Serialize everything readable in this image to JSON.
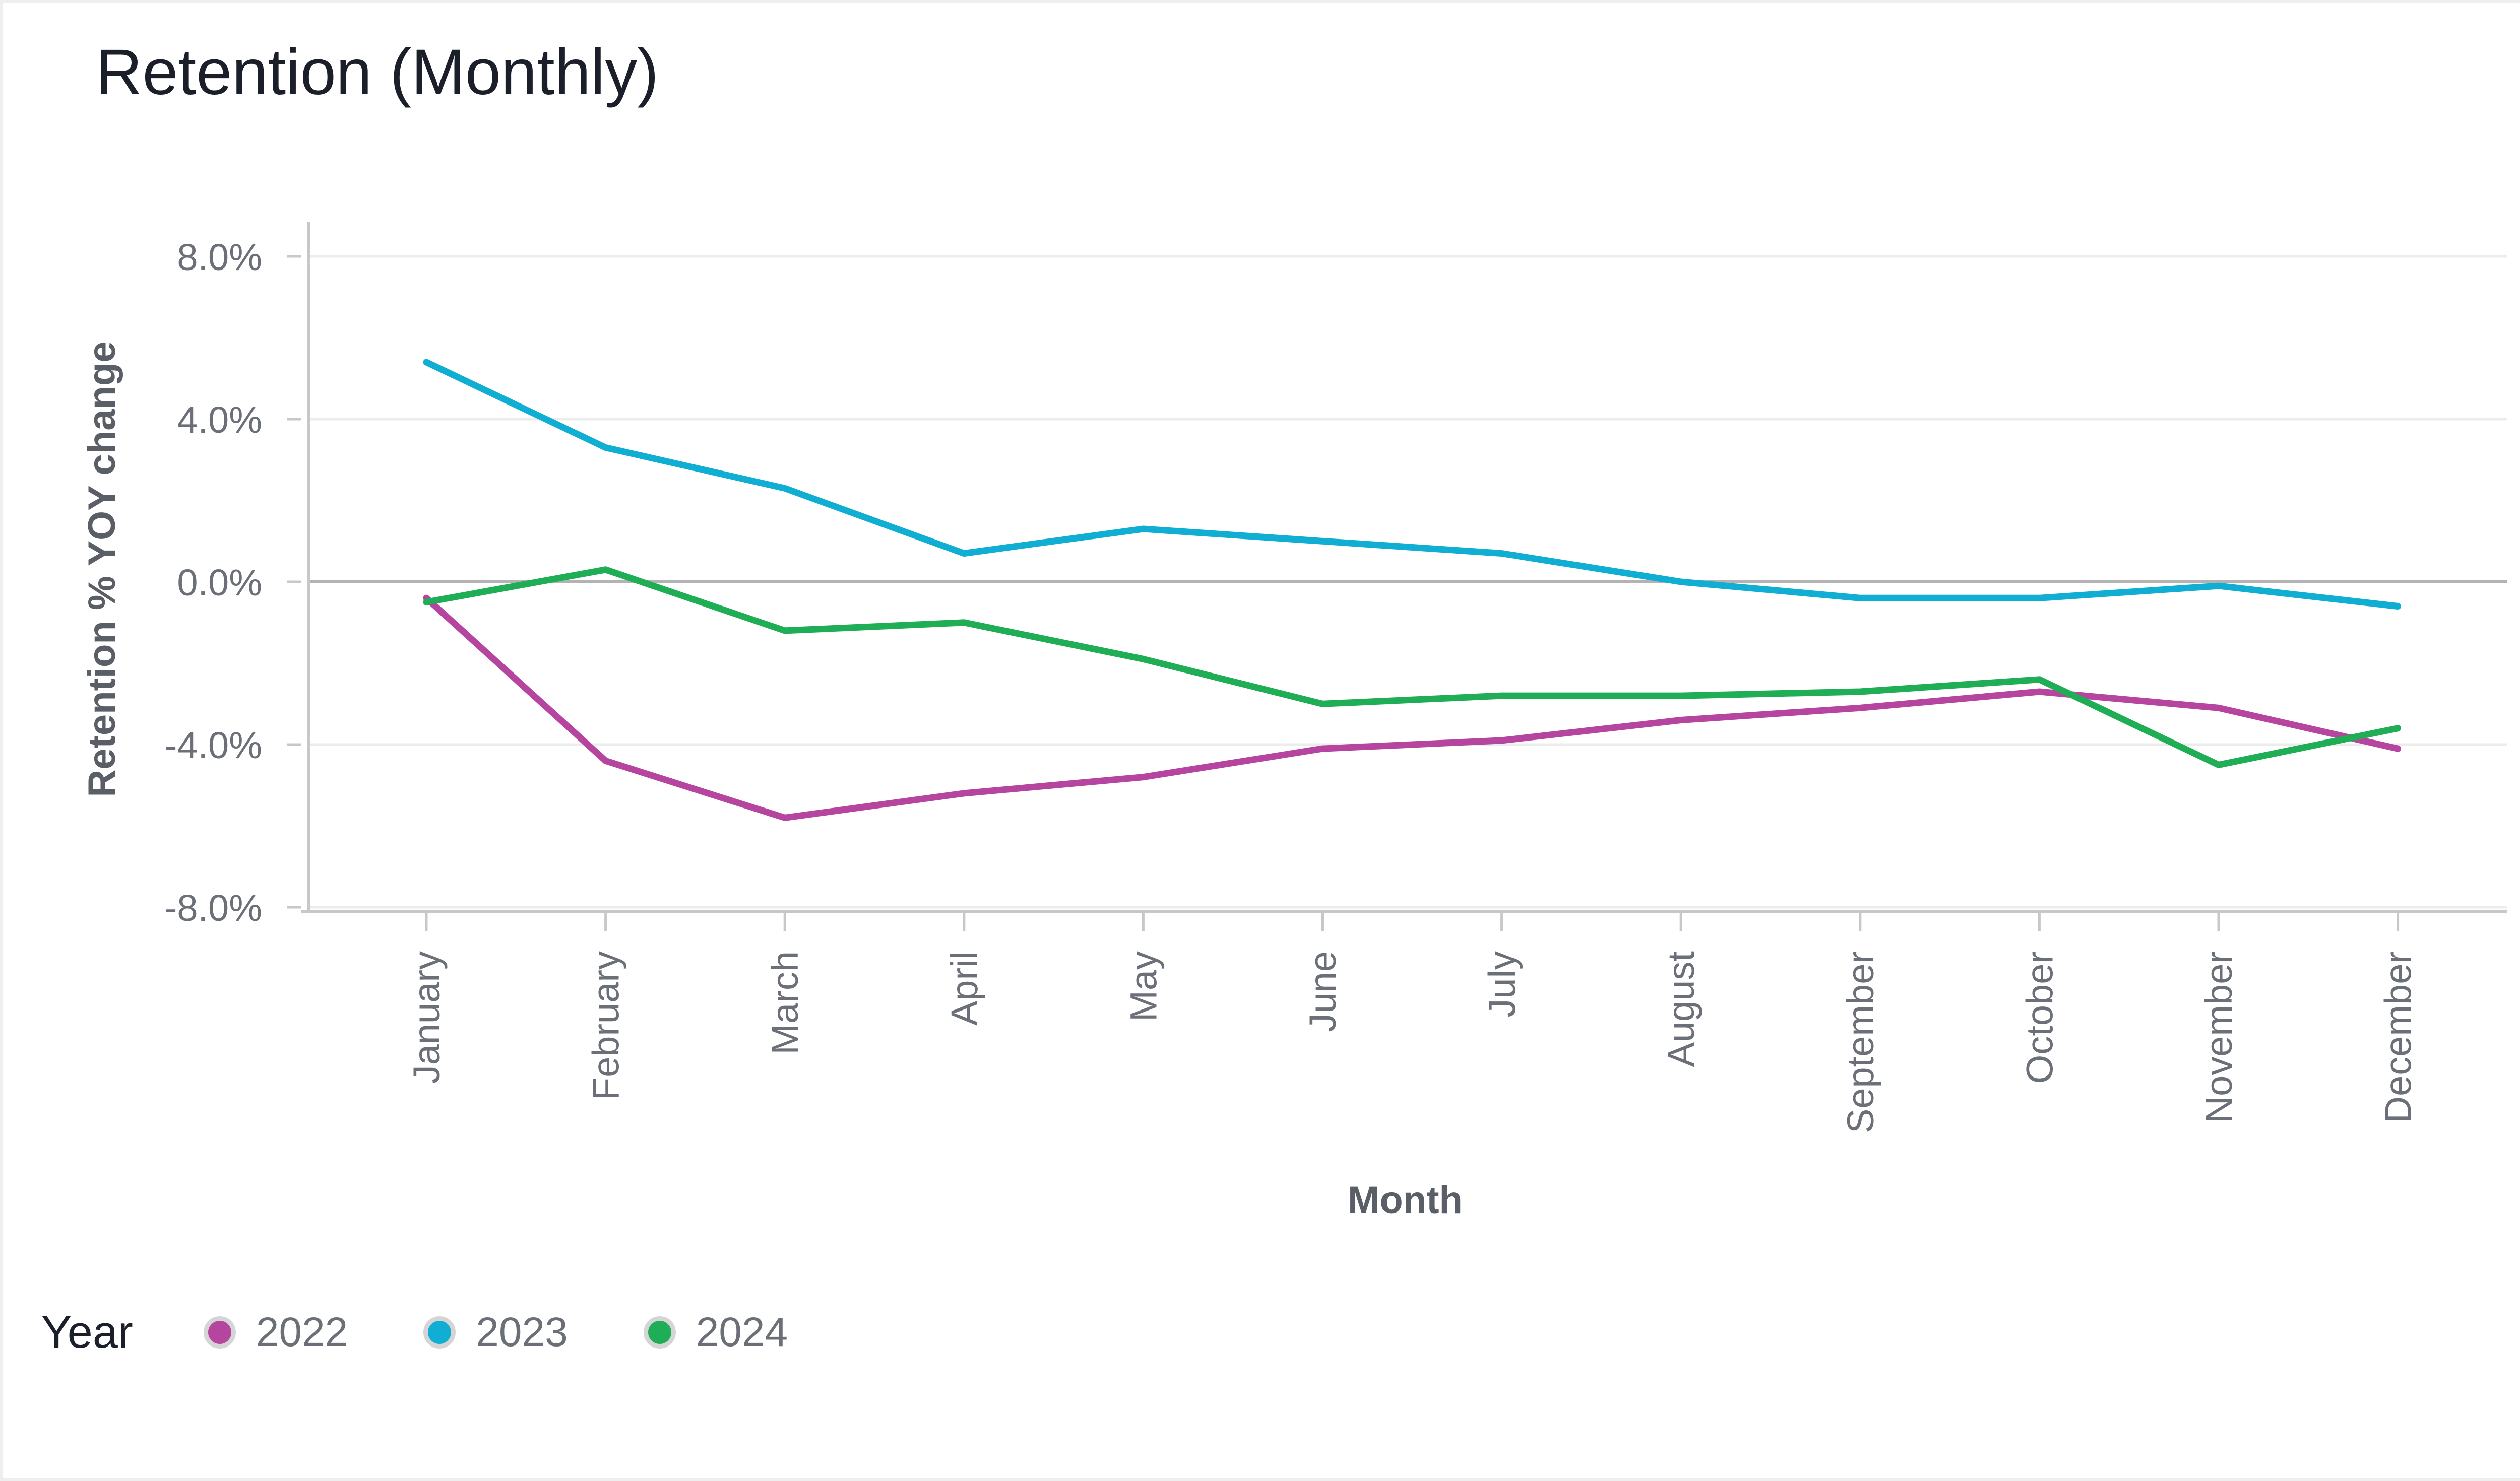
{
  "chart_title": "Retention (Monthly)",
  "chart_data": {
    "type": "line",
    "title": "Retention (Monthly)",
    "xlabel": "Month",
    "ylabel": "Retention % YOY change",
    "categories": [
      "January",
      "February",
      "March",
      "April",
      "May",
      "June",
      "July",
      "August",
      "September",
      "October",
      "November",
      "December"
    ],
    "y_ticks": [
      {
        "value": 8,
        "label": "8.0%"
      },
      {
        "value": 4,
        "label": "4.0%"
      },
      {
        "value": 0,
        "label": "0.0%"
      },
      {
        "value": -4,
        "label": "-4.0%"
      },
      {
        "value": -8,
        "label": "-8.0%"
      }
    ],
    "ylim": [
      -8.8,
      8.8
    ],
    "grid": true,
    "legend_position": "bottom-left",
    "legend_title": "Year",
    "series": [
      {
        "name": "2022",
        "color": "#b5459f",
        "values": [
          -0.4,
          -4.4,
          -5.8,
          -5.2,
          -4.8,
          -4.1,
          -3.9,
          -3.4,
          -3.1,
          -2.7,
          -3.1,
          -4.1
        ]
      },
      {
        "name": "2023",
        "color": "#11aed3",
        "values": [
          5.4,
          3.3,
          2.3,
          0.7,
          1.3,
          1.0,
          0.7,
          0.0,
          -0.4,
          -0.4,
          -0.1,
          -0.6
        ]
      },
      {
        "name": "2024",
        "color": "#1fad55",
        "values": [
          -0.5,
          0.3,
          -1.2,
          -1.0,
          -1.9,
          -3.0,
          -2.8,
          -2.8,
          -2.7,
          -2.4,
          -4.5,
          -3.6
        ]
      }
    ]
  }
}
